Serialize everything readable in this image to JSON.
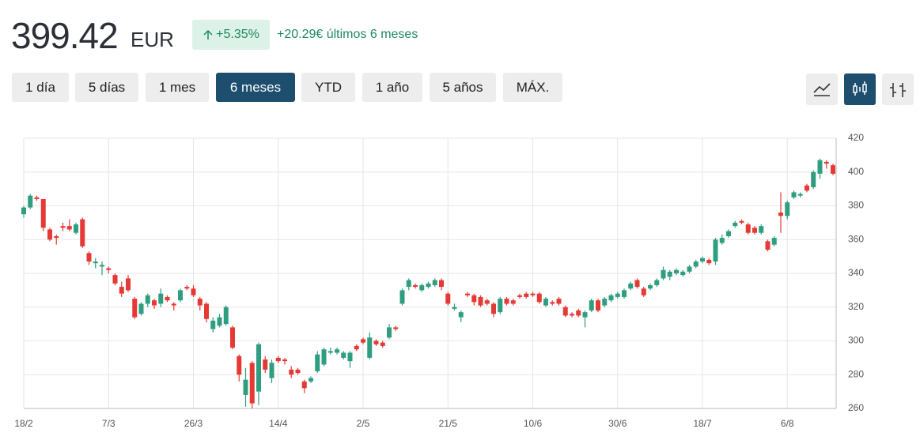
{
  "header": {
    "price": "399.42",
    "currency": "EUR",
    "change_pct": "+5.35%",
    "change_text": "+20.29€ últimos 6 meses"
  },
  "ranges": [
    "1 día",
    "5 días",
    "1 mes",
    "6 meses",
    "YTD",
    "1 año",
    "5 años",
    "MÁX."
  ],
  "active_range": 3,
  "chart_data": {
    "type": "candlestick",
    "up_color": "#2f9e80",
    "down_color": "#e53935",
    "grid": true,
    "categories": [
      "18/2",
      null,
      null,
      null,
      null,
      null,
      null,
      null,
      null,
      null,
      null,
      null,
      null,
      "7/3",
      null,
      null,
      null,
      null,
      null,
      null,
      null,
      null,
      null,
      null,
      null,
      null,
      "26/3",
      null,
      null,
      null,
      null,
      null,
      null,
      null,
      null,
      null,
      null,
      null,
      null,
      "14/4",
      null,
      null,
      null,
      null,
      null,
      null,
      null,
      null,
      null,
      null,
      null,
      null,
      "2/5",
      null,
      null,
      null,
      null,
      null,
      null,
      null,
      null,
      null,
      null,
      null,
      null,
      "21/5",
      null,
      null,
      null,
      null,
      null,
      null,
      null,
      null,
      null,
      null,
      null,
      null,
      "10/6",
      null,
      null,
      null,
      null,
      null,
      null,
      null,
      null,
      null,
      null,
      null,
      null,
      "30/6",
      null,
      null,
      null,
      null,
      null,
      null,
      null,
      null,
      null,
      null,
      null,
      null,
      "18/7",
      null,
      null,
      null,
      null,
      null,
      null,
      null,
      null,
      null,
      null,
      null,
      null,
      "6/8",
      null,
      null,
      null,
      null,
      null,
      null,
      null
    ],
    "open": [
      375,
      379,
      385,
      384,
      366,
      362,
      368,
      368,
      364,
      372,
      352,
      346,
      344,
      343,
      339,
      332,
      337,
      325,
      316,
      322,
      324,
      322,
      326,
      322,
      324,
      332,
      331,
      325,
      322,
      307,
      309,
      310,
      308,
      291,
      268,
      287,
      270,
      289,
      278,
      290,
      289,
      283,
      283,
      276,
      276,
      282,
      286,
      293,
      293,
      290,
      288,
      297,
      301,
      290,
      300,
      299,
      302,
      308,
      322,
      332,
      333,
      330,
      332,
      333,
      336,
      328,
      319,
      314,
      328,
      327,
      326,
      324,
      322,
      317,
      325,
      324,
      327,
      328,
      328,
      328,
      321,
      323,
      325,
      320,
      316,
      318,
      314,
      318,
      324,
      321,
      324,
      326,
      326,
      331,
      336,
      331,
      331,
      333,
      337,
      338,
      340,
      339,
      341,
      344,
      347,
      348,
      347,
      358,
      362,
      368,
      371,
      369,
      367,
      364,
      359,
      357,
      376,
      374,
      385,
      386,
      392,
      391,
      399,
      406,
      404
    ],
    "high": [
      380,
      387,
      386,
      384,
      367,
      363,
      370,
      372,
      370,
      373,
      353,
      349,
      347,
      344,
      340,
      335,
      339,
      326,
      323,
      328,
      325,
      331,
      327,
      323,
      331,
      333,
      333,
      326,
      323,
      314,
      316,
      321,
      309,
      292,
      284,
      288,
      299,
      291,
      289,
      291,
      290,
      285,
      284,
      277,
      279,
      294,
      296,
      296,
      296,
      294,
      294,
      298,
      302,
      305,
      301,
      300,
      310,
      309,
      331,
      337,
      334,
      334,
      335,
      337,
      337,
      329,
      322,
      318,
      329,
      328,
      327,
      325,
      323,
      326,
      326,
      325,
      328,
      329,
      329,
      329,
      326,
      324,
      326,
      321,
      317,
      319,
      318,
      325,
      325,
      326,
      328,
      329,
      331,
      335,
      337,
      332,
      334,
      337,
      344,
      342,
      343,
      342,
      345,
      348,
      350,
      349,
      361,
      363,
      366,
      371,
      372,
      370,
      368,
      369,
      360,
      362,
      388,
      383,
      389,
      388,
      393,
      401,
      408,
      407,
      405
    ],
    "low": [
      373,
      378,
      383,
      365,
      359,
      357,
      365,
      365,
      363,
      355,
      345,
      343,
      339,
      340,
      333,
      326,
      329,
      313,
      315,
      320,
      319,
      320,
      323,
      318,
      323,
      330,
      326,
      318,
      311,
      305,
      308,
      309,
      295,
      276,
      261,
      260,
      262,
      281,
      275,
      287,
      286,
      278,
      280,
      269,
      275,
      281,
      285,
      292,
      292,
      289,
      284,
      294,
      298,
      289,
      297,
      296,
      301,
      306,
      321,
      330,
      331,
      329,
      331,
      332,
      330,
      321,
      318,
      311,
      326,
      321,
      320,
      321,
      314,
      316,
      321,
      321,
      325,
      325,
      326,
      322,
      320,
      321,
      321,
      314,
      314,
      314,
      308,
      317,
      317,
      320,
      323,
      325,
      325,
      330,
      331,
      326,
      330,
      332,
      336,
      336,
      339,
      338,
      340,
      343,
      346,
      345,
      345,
      357,
      361,
      367,
      369,
      363,
      363,
      363,
      353,
      356,
      364,
      372,
      384,
      385,
      388,
      390,
      396,
      402,
      398
    ],
    "close": [
      379,
      386,
      384,
      367,
      360,
      361,
      367,
      366,
      369,
      356,
      347,
      347,
      345,
      342,
      334,
      328,
      330,
      314,
      322,
      327,
      321,
      328,
      324,
      321,
      330,
      331,
      327,
      321,
      313,
      312,
      314,
      320,
      296,
      280,
      277,
      263,
      298,
      283,
      287,
      288,
      288,
      280,
      281,
      272,
      278,
      292,
      295,
      294,
      295,
      293,
      293,
      295,
      299,
      302,
      298,
      297,
      308,
      307,
      330,
      336,
      332,
      333,
      334,
      336,
      332,
      322,
      320,
      317,
      327,
      323,
      321,
      322,
      316,
      325,
      322,
      322,
      326,
      326,
      327,
      323,
      325,
      322,
      322,
      315,
      315,
      315,
      317,
      324,
      318,
      325,
      327,
      328,
      330,
      334,
      332,
      327,
      333,
      336,
      342,
      341,
      342,
      341,
      344,
      347,
      349,
      346,
      360,
      361,
      365,
      370,
      370,
      364,
      364,
      368,
      354,
      361,
      374,
      382,
      388,
      387,
      389,
      400,
      407,
      405,
      399
    ],
    "ylim": [
      260,
      420
    ],
    "yticks": [
      260,
      280,
      300,
      320,
      340,
      360,
      380,
      400,
      420
    ]
  }
}
